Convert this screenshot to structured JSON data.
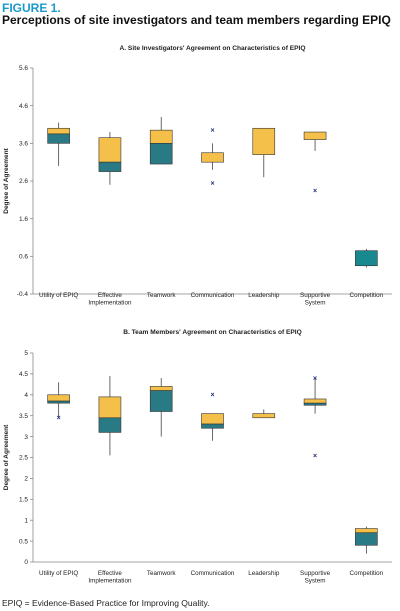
{
  "figure": {
    "label": "FIGURE 1.",
    "title": "Perceptions of site investigators and team members regarding EPIQ",
    "footnote": "EPIQ = Evidence-Based Practice for Improving Quality."
  },
  "colors": {
    "upper_box": "#f5c04a",
    "lower_box": "#2a7a86",
    "single_box": "#17898f",
    "outlier": "#1c2a7a",
    "axis": "#888888",
    "whisker": "#444444"
  },
  "chart_data": [
    {
      "type": "boxplot",
      "title": "A. Site Investigators' Agreement on Characteristics of EPIQ",
      "ylabel": "Degree of Agreement",
      "ylim": [
        -0.4,
        5.6
      ],
      "yticks": [
        "-0.4",
        "0.6",
        "1.6",
        "2.6",
        "3.6",
        "4.6",
        "5.6"
      ],
      "categories": [
        "Utility of EPIQ",
        "Effective\nImplementation",
        "Teamwork",
        "Communication",
        "Leadership",
        "Supportive\nSystem",
        "Competition"
      ],
      "boxes": [
        {
          "min": 3.0,
          "q1": 3.6,
          "median": 3.85,
          "q3": 4.0,
          "max": 4.15,
          "outliers": []
        },
        {
          "min": 2.5,
          "q1": 2.85,
          "median": 3.1,
          "q3": 3.75,
          "max": 3.9,
          "outliers": []
        },
        {
          "min": 3.05,
          "q1": 3.05,
          "median": 3.6,
          "q3": 3.95,
          "max": 4.3,
          "outliers": []
        },
        {
          "min": 2.9,
          "q1": 3.1,
          "median": 3.1,
          "q3": 3.35,
          "max": 3.6,
          "outliers": [
            3.95,
            2.55
          ]
        },
        {
          "min": 2.7,
          "q1": 3.3,
          "median": 3.3,
          "q3": 4.0,
          "max": 4.0,
          "outliers": []
        },
        {
          "min": 3.4,
          "q1": 3.7,
          "median": 3.7,
          "q3": 3.9,
          "max": 3.9,
          "outliers": [
            2.35
          ]
        },
        {
          "min": 0.3,
          "q1": 0.35,
          "median": 0.35,
          "q3": 0.75,
          "max": 0.8,
          "outliers": []
        }
      ]
    },
    {
      "type": "boxplot",
      "title": "B. Team Members' Agreement on Characteristics of EPIQ",
      "ylabel": "Degree of Agreement",
      "ylim": [
        0,
        5
      ],
      "yticks": [
        "0",
        "0.5",
        "1",
        "1.5",
        "2",
        "2.5",
        "3",
        "3.5",
        "4",
        "4.5",
        "5"
      ],
      "categories": [
        "Utility of EPIQ",
        "Effective\nImplementation",
        "Teamwork",
        "Communication",
        "Leadership",
        "Supportive\nSystem",
        "Competition"
      ],
      "boxes": [
        {
          "min": 3.45,
          "q1": 3.8,
          "median": 3.85,
          "q3": 4.0,
          "max": 4.3,
          "outliers": [
            3.45
          ]
        },
        {
          "min": 2.55,
          "q1": 3.1,
          "median": 3.45,
          "q3": 3.95,
          "max": 4.45,
          "outliers": []
        },
        {
          "min": 3.0,
          "q1": 3.6,
          "median": 4.1,
          "q3": 4.2,
          "max": 4.4,
          "outliers": []
        },
        {
          "min": 2.9,
          "q1": 3.2,
          "median": 3.3,
          "q3": 3.55,
          "max": 3.55,
          "outliers": [
            4.0
          ]
        },
        {
          "min": 3.45,
          "q1": 3.45,
          "median": 3.45,
          "q3": 3.55,
          "max": 3.65,
          "outliers": []
        },
        {
          "min": 3.55,
          "q1": 3.75,
          "median": 3.8,
          "q3": 3.9,
          "max": 4.4,
          "outliers": [
            4.4,
            2.55
          ]
        },
        {
          "min": 0.2,
          "q1": 0.4,
          "median": 0.7,
          "q3": 0.8,
          "max": 0.85,
          "outliers": []
        }
      ]
    }
  ]
}
